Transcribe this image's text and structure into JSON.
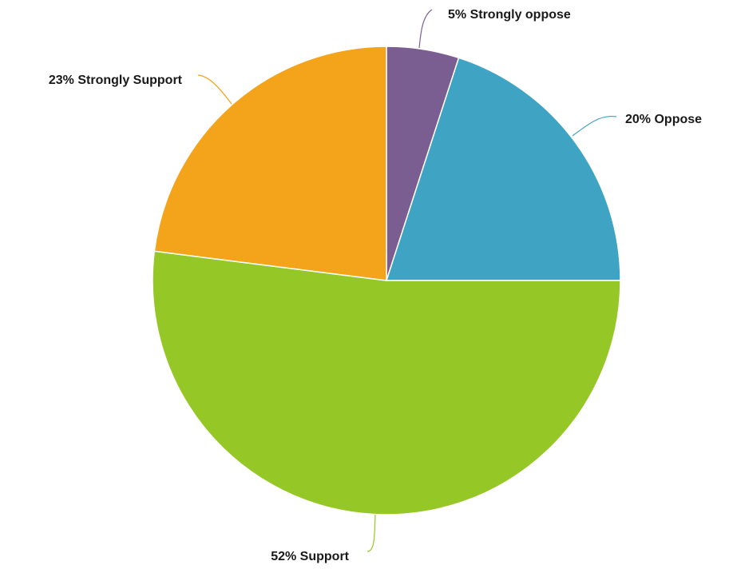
{
  "chart_data": {
    "type": "pie",
    "title": "",
    "legend": "none",
    "start_angle_deg": 0,
    "direction": "clockwise",
    "slices": [
      {
        "label": "Strongly oppose",
        "value": 5,
        "display": "5% Strongly oppose",
        "color": "#7b5e91"
      },
      {
        "label": "Oppose",
        "value": 20,
        "display": "20% Oppose",
        "color": "#3fa3c3"
      },
      {
        "label": "Support",
        "value": 52,
        "display": "52% Support",
        "color": "#95c826"
      },
      {
        "label": "Strongly Support",
        "value": 23,
        "display": "23% Strongly Support",
        "color": "#f4a41b"
      }
    ]
  }
}
